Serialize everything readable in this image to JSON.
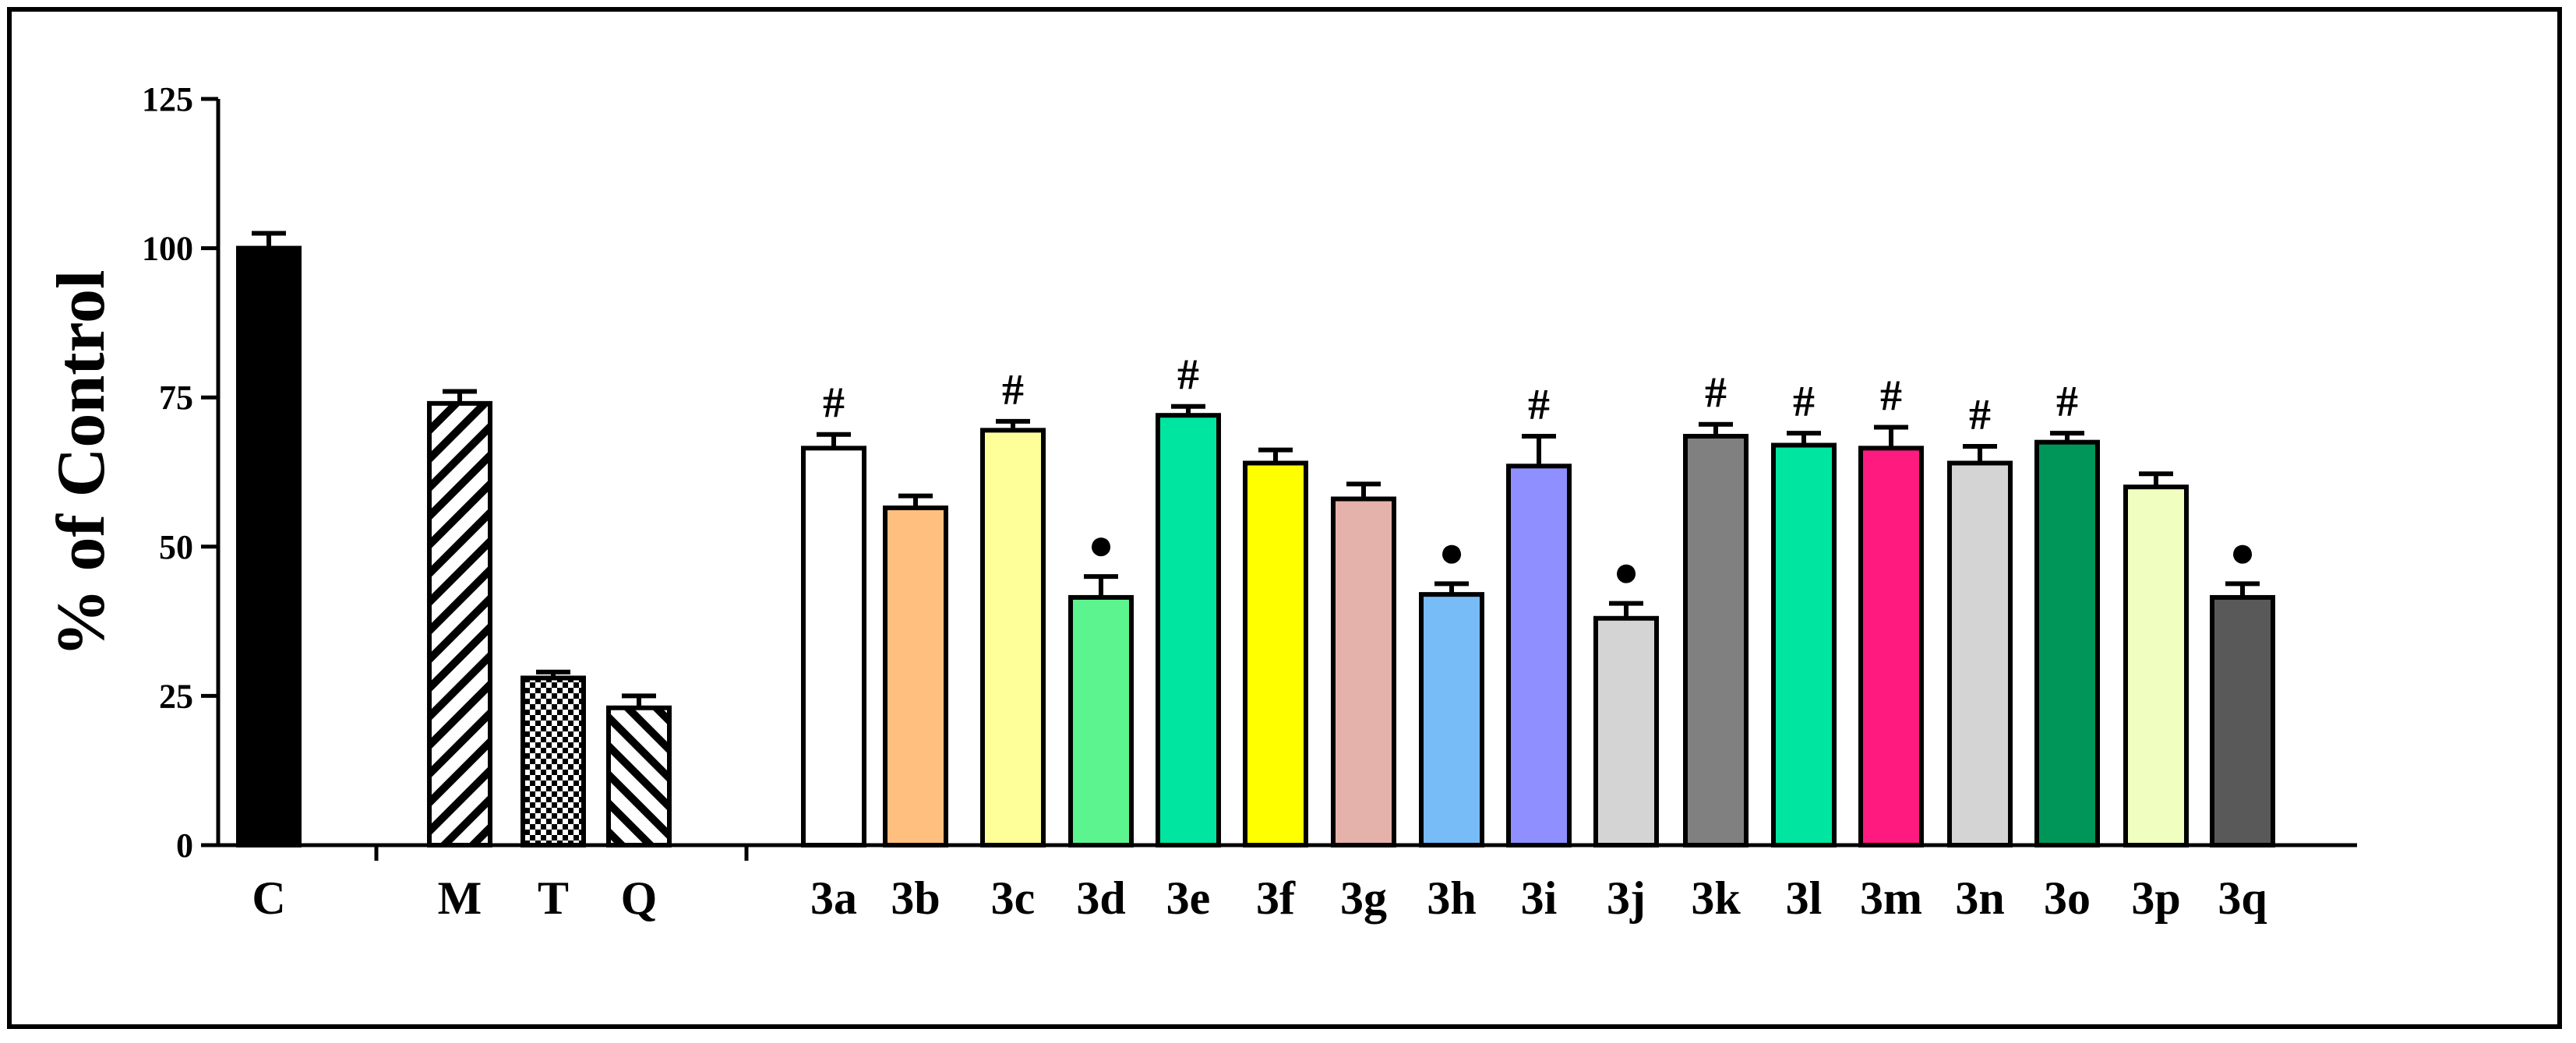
{
  "chart_data": {
    "type": "bar",
    "title": "",
    "xlabel": "",
    "ylabel": "% of  Control",
    "ylim": [
      0,
      125
    ],
    "yticks": [
      0,
      25,
      50,
      75,
      100,
      125
    ],
    "grid": false,
    "legend": "none",
    "bars": [
      {
        "label": "C",
        "value": 100,
        "error": 2.5,
        "fill": "#000000",
        "pattern": "solid",
        "annotation": ""
      },
      {
        "label": "M",
        "value": 74,
        "error": 2,
        "fill": "#ffffff",
        "pattern": "diagonal",
        "annotation": ""
      },
      {
        "label": "T",
        "value": 28,
        "error": 1,
        "fill": "#ffffff",
        "pattern": "checker",
        "annotation": ""
      },
      {
        "label": "Q",
        "value": 23,
        "error": 2,
        "fill": "#ffffff",
        "pattern": "backdiag",
        "annotation": ""
      },
      {
        "label": "3a",
        "value": 66.5,
        "error": 2.3,
        "fill": "#ffffff",
        "pattern": "solid",
        "annotation": "#"
      },
      {
        "label": "3b",
        "value": 56.5,
        "error": 2,
        "fill": "#ffbf7f",
        "pattern": "solid",
        "annotation": ""
      },
      {
        "label": "3c",
        "value": 69.5,
        "error": 1.5,
        "fill": "#ffff99",
        "pattern": "solid",
        "annotation": "#"
      },
      {
        "label": "3d",
        "value": 41.5,
        "error": 3.5,
        "fill": "#5cf48f",
        "pattern": "solid",
        "annotation": "●"
      },
      {
        "label": "3e",
        "value": 72,
        "error": 1.5,
        "fill": "#00e5a0",
        "pattern": "solid",
        "annotation": "#"
      },
      {
        "label": "3f",
        "value": 64,
        "error": 2.2,
        "fill": "#ffff00",
        "pattern": "solid",
        "annotation": ""
      },
      {
        "label": "3g",
        "value": 58,
        "error": 2.5,
        "fill": "#e5b1ab",
        "pattern": "solid",
        "annotation": ""
      },
      {
        "label": "3h",
        "value": 42,
        "error": 1.8,
        "fill": "#77bbf7",
        "pattern": "solid",
        "annotation": "●"
      },
      {
        "label": "3i",
        "value": 63.5,
        "error": 5,
        "fill": "#8f8fff",
        "pattern": "solid",
        "annotation": "#"
      },
      {
        "label": "3j",
        "value": 38,
        "error": 2.5,
        "fill": "#d4d4d4",
        "pattern": "solid",
        "annotation": "●"
      },
      {
        "label": "3k",
        "value": 68.5,
        "error": 2,
        "fill": "#808080",
        "pattern": "solid",
        "annotation": "#"
      },
      {
        "label": "3l",
        "value": 67,
        "error": 2,
        "fill": "#00e5a0",
        "pattern": "solid",
        "annotation": "#"
      },
      {
        "label": "3m",
        "value": 66.5,
        "error": 3.5,
        "fill": "#ff1a80",
        "pattern": "solid",
        "annotation": "#"
      },
      {
        "label": "3n",
        "value": 64,
        "error": 2.8,
        "fill": "#d4d4d4",
        "pattern": "solid",
        "annotation": "#"
      },
      {
        "label": "3o",
        "value": 67.5,
        "error": 1.5,
        "fill": "#009659",
        "pattern": "solid",
        "annotation": "#"
      },
      {
        "label": "3p",
        "value": 60,
        "error": 2.2,
        "fill": "#f0ffbf",
        "pattern": "solid",
        "annotation": ""
      },
      {
        "label": "3q",
        "value": 41.5,
        "error": 2.3,
        "fill": "#595959",
        "pattern": "solid",
        "annotation": "●"
      }
    ]
  }
}
